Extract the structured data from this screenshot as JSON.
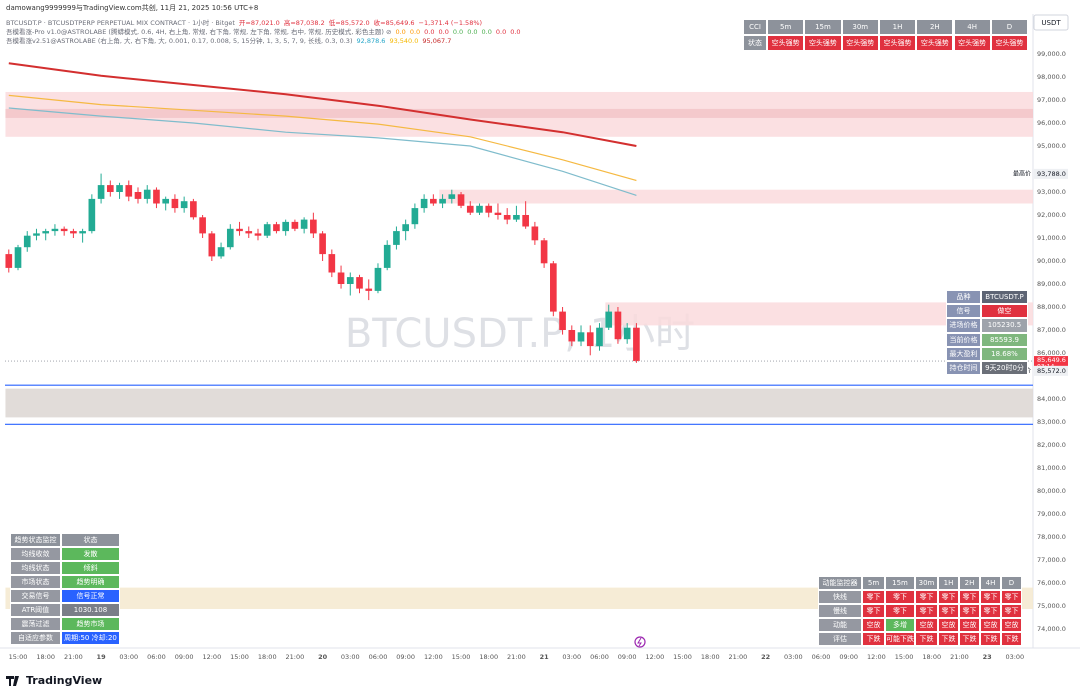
{
  "header": {
    "title": "damowang9999999与TradingView.com共创, 11月 21, 2025 10:56 UTC+8"
  },
  "legend": [
    {
      "parts": [
        {
          "text": "BTCUSDT.P · BTCUSDTPERP PERPETUAL MIX CONTRACT · 1小时 · Bitget",
          "color": "#6a6d78"
        },
        {
          "text": "开=87,021.0",
          "color": "#e0313f"
        },
        {
          "text": "高=87,038.2",
          "color": "#e0313f"
        },
        {
          "text": "低=85,572.0",
          "color": "#e0313f"
        },
        {
          "text": "收=85,649.6",
          "color": "#e0313f"
        },
        {
          "text": "−1,371.4 (−1.58%)",
          "color": "#e0313f"
        }
      ]
    },
    {
      "parts": [
        {
          "text": "吾模看涨-Pro v1.0@ASTROLABE (腾蟒模式, 0.6, 4H, 右上角, 常规, 右下角, 常规, 左下角, 常规, 右中, 常规, 历史模式, 彩色主题) ⊘",
          "color": "#6a6d78"
        },
        {
          "text": "0.0",
          "color": "#ff9800"
        },
        {
          "text": "0.0",
          "color": "#ff9800"
        },
        {
          "text": "0.0",
          "color": "#e0313f"
        },
        {
          "text": "0.0",
          "color": "#e0313f"
        },
        {
          "text": "0.0",
          "color": "#4caf50"
        },
        {
          "text": "0.0",
          "color": "#4caf50"
        },
        {
          "text": "0.0",
          "color": "#4caf50"
        },
        {
          "text": "0.0",
          "color": "#e0313f"
        },
        {
          "text": "0.0",
          "color": "#e0313f"
        }
      ]
    },
    {
      "parts": [
        {
          "text": "吾模看涨v2.51@ASTROLABE (右上角, 大, 右下角, 大, 0.001, 0.17, 0.008, 5, 15分钟, 1, 3, 5, 7, 9, 长线, 0.3, 0.3)",
          "color": "#6a6d78"
        },
        {
          "text": "92,878.6",
          "color": "#26a6c9"
        },
        {
          "text": "93,540.0",
          "color": "#f5b800"
        },
        {
          "text": "95,067.7",
          "color": "#c62828"
        }
      ]
    }
  ],
  "watermark": "BTCUSDT.P, 1小时",
  "currency": "USDT",
  "brand": "TradingView",
  "chart_data": {
    "type": "candlestick",
    "up_color": "#22ab94",
    "down_color": "#f23645",
    "open": [
      90300,
      89700,
      90600,
      91100,
      91200,
      91300,
      91400,
      91300,
      91200,
      91300,
      92700,
      93300,
      93000,
      93300,
      93000,
      92700,
      93100,
      92500,
      92700,
      92300,
      92600,
      91900,
      91200,
      90200,
      90600,
      91400,
      91300,
      91200,
      91100,
      91600,
      91300,
      91700,
      91400,
      91800,
      91200,
      90300,
      89500,
      89000,
      89300,
      88800,
      88700,
      89700,
      90700,
      91300,
      91600,
      92300,
      92700,
      92500,
      92700,
      92900,
      92400,
      92100,
      92400,
      92100,
      92000,
      91800,
      92000,
      91500,
      90900,
      89900,
      87800,
      87000,
      86500,
      86900,
      86300,
      87100,
      87800,
      86600,
      87100
    ],
    "high": [
      90500,
      90700,
      91300,
      91400,
      91400,
      91600,
      91500,
      91400,
      91400,
      92900,
      93800,
      93500,
      93400,
      93500,
      93200,
      93300,
      93200,
      92800,
      92900,
      92800,
      92700,
      92000,
      91300,
      90800,
      91600,
      91700,
      91500,
      91400,
      91700,
      91700,
      91800,
      91800,
      91900,
      92100,
      91300,
      90500,
      89800,
      89500,
      89400,
      89200,
      89900,
      90900,
      91500,
      91800,
      92500,
      92900,
      92900,
      92900,
      93100,
      93000,
      92600,
      92500,
      92500,
      92500,
      92300,
      92400,
      92600,
      91700,
      91000,
      90000,
      88000,
      87200,
      87200,
      87200,
      87300,
      88100,
      88000,
      87300,
      87300
    ],
    "low": [
      89500,
      89600,
      90400,
      90900,
      90900,
      91100,
      91100,
      91000,
      90800,
      91200,
      92500,
      92800,
      92700,
      92600,
      92500,
      92500,
      92300,
      92200,
      92100,
      92100,
      91800,
      91000,
      90000,
      90100,
      90500,
      91100,
      91000,
      90900,
      91000,
      91200,
      91100,
      91300,
      91200,
      91000,
      90000,
      89300,
      88800,
      88500,
      88600,
      88300,
      88600,
      89600,
      90500,
      90900,
      91400,
      92100,
      92400,
      92300,
      92500,
      92300,
      92000,
      92000,
      91900,
      91800,
      91600,
      91700,
      91400,
      90700,
      89700,
      87600,
      86800,
      86300,
      86300,
      85900,
      86100,
      87000,
      86400,
      86400,
      85572
    ],
    "close": [
      89700,
      90600,
      91100,
      91200,
      91300,
      91400,
      91300,
      91200,
      91300,
      92700,
      93300,
      93000,
      93300,
      92800,
      92700,
      93100,
      92500,
      92700,
      92300,
      92600,
      91900,
      91200,
      90200,
      90600,
      91400,
      91300,
      91200,
      91100,
      91600,
      91300,
      91700,
      91400,
      91800,
      91200,
      90300,
      89500,
      89000,
      89300,
      88800,
      88700,
      89700,
      90700,
      91300,
      91600,
      92300,
      92700,
      92500,
      92700,
      92900,
      92400,
      92100,
      92400,
      92100,
      92000,
      91800,
      92000,
      91500,
      90900,
      89900,
      87800,
      87000,
      86500,
      86900,
      86300,
      87100,
      87800,
      86600,
      87100,
      85650
    ],
    "lines": [
      {
        "color": "#d32f2f",
        "x": [
          0,
          10,
          20,
          30,
          40,
          50,
          60,
          68
        ],
        "values": [
          98600,
          98050,
          97650,
          97250,
          96750,
          96150,
          95600,
          95000
        ]
      },
      {
        "color": "#f5b942",
        "x": [
          0,
          10,
          20,
          30,
          40,
          50,
          60,
          68
        ],
        "values": [
          97200,
          96800,
          96550,
          96300,
          95950,
          95400,
          94400,
          93500
        ]
      },
      {
        "color": "#7fbccc",
        "x": [
          0,
          10,
          20,
          30,
          40,
          50,
          60,
          68
        ],
        "values": [
          96650,
          96300,
          96000,
          95600,
          95350,
          95000,
          93900,
          92850
        ]
      }
    ],
    "zones": [
      {
        "from": 97350,
        "to": 95400,
        "start": 0,
        "color": "#fadadd"
      },
      {
        "from": 96610,
        "to": 96220,
        "start": 0,
        "color": "#f2c4c8"
      },
      {
        "from": 93100,
        "to": 92500,
        "start": 47,
        "color": "#fadadd"
      },
      {
        "from": 88200,
        "to": 87200,
        "start": 65,
        "color": "#fadadd"
      },
      {
        "from": 84450,
        "to": 83200,
        "start": 0,
        "color": "#dcd6d2"
      },
      {
        "from": 75800,
        "to": 74870,
        "start": 0,
        "color": "#f4e9cf"
      }
    ],
    "hlines": [
      {
        "value": 84600,
        "color": "#2962ff"
      },
      {
        "value": 82900,
        "color": "#2962ff"
      }
    ],
    "ylim": [
      73174,
      100565
    ],
    "xlim": [
      -0.41,
      110.97
    ],
    "yticks": [
      {
        "value": 99000,
        "label": "99,000.0"
      },
      {
        "value": 98000,
        "label": "98,000.0"
      },
      {
        "value": 97000,
        "label": "97,000.0"
      },
      {
        "value": 96000,
        "label": "96,000.0"
      },
      {
        "value": 95000,
        "label": "95,000.0"
      },
      {
        "value": 93000,
        "label": "93,000.0"
      },
      {
        "value": 92000,
        "label": "92,000.0"
      },
      {
        "value": 91000,
        "label": "91,000.0"
      },
      {
        "value": 90000,
        "label": "90,000.0"
      },
      {
        "value": 89000,
        "label": "89,000.0"
      },
      {
        "value": 88000,
        "label": "88,000.0"
      },
      {
        "value": 87000,
        "label": "87,000.0"
      },
      {
        "value": 86000,
        "label": "86,000.0"
      },
      {
        "value": 84000,
        "label": "84,000.0"
      },
      {
        "value": 83000,
        "label": "83,000.0"
      },
      {
        "value": 82000,
        "label": "82,000.0"
      },
      {
        "value": 81000,
        "label": "81,000.0"
      },
      {
        "value": 80000,
        "label": "80,000.0"
      },
      {
        "value": 79000,
        "label": "79,000.0"
      },
      {
        "value": 78000,
        "label": "78,000.0"
      },
      {
        "value": 77000,
        "label": "77,000.0"
      },
      {
        "value": 76000,
        "label": "76,000.0"
      },
      {
        "value": 75000,
        "label": "75,000.0"
      },
      {
        "value": 74000,
        "label": "74,000.0"
      }
    ],
    "xticks": [
      {
        "value": 1,
        "label": "15:00"
      },
      {
        "value": 4,
        "label": "18:00"
      },
      {
        "value": 7,
        "label": "21:00"
      },
      {
        "value": 10,
        "label": "19"
      },
      {
        "value": 13,
        "label": "03:00"
      },
      {
        "value": 16,
        "label": "06:00"
      },
      {
        "value": 19,
        "label": "09:00"
      },
      {
        "value": 22,
        "label": "12:00"
      },
      {
        "value": 25,
        "label": "15:00"
      },
      {
        "value": 28,
        "label": "18:00"
      },
      {
        "value": 31,
        "label": "21:00"
      },
      {
        "value": 34,
        "label": "20"
      },
      {
        "value": 37,
        "label": "03:00"
      },
      {
        "value": 40,
        "label": "06:00"
      },
      {
        "value": 43,
        "label": "09:00"
      },
      {
        "value": 46,
        "label": "12:00"
      },
      {
        "value": 49,
        "label": "15:00"
      },
      {
        "value": 52,
        "label": "18:00"
      },
      {
        "value": 55,
        "label": "21:00"
      },
      {
        "value": 58,
        "label": "21"
      },
      {
        "value": 61,
        "label": "03:00"
      },
      {
        "value": 64,
        "label": "06:00"
      },
      {
        "value": 67,
        "label": "09:00"
      },
      {
        "value": 70,
        "label": "12:00"
      },
      {
        "value": 73,
        "label": "15:00"
      },
      {
        "value": 76,
        "label": "18:00"
      },
      {
        "value": 79,
        "label": "21:00"
      },
      {
        "value": 82,
        "label": "22"
      },
      {
        "value": 85,
        "label": "03:00"
      },
      {
        "value": 88,
        "label": "06:00"
      },
      {
        "value": 91,
        "label": "09:00"
      },
      {
        "value": 94,
        "label": "12:00"
      },
      {
        "value": 97,
        "label": "15:00"
      },
      {
        "value": 100,
        "label": "18:00"
      },
      {
        "value": 103,
        "label": "21:00"
      },
      {
        "value": 106,
        "label": "23"
      },
      {
        "value": 109,
        "label": "03:00"
      }
    ],
    "price_labels": [
      {
        "value": 93788,
        "label": "93,788.0",
        "name": "最高价",
        "style": "plain"
      },
      {
        "value": 85649.6,
        "label": "85,649.6",
        "countdown": "03:14",
        "style": "current"
      },
      {
        "value": 85572,
        "label": "85,572.0",
        "name": "最低价",
        "style": "plain"
      }
    ]
  },
  "tables": {
    "cci": {
      "rows": [
        [
          "CCI",
          "5m",
          "15m",
          "30m",
          "1H",
          "2H",
          "4H",
          "D"
        ],
        [
          "状态",
          "空头强势",
          "空头强势",
          "空头强势",
          "空头强势",
          "空头强势",
          "空头强势",
          "空头强势"
        ]
      ]
    },
    "signal": {
      "rows": [
        [
          "品种",
          "BTCUSDT.P"
        ],
        [
          "信号",
          "做空"
        ],
        [
          "进场价格",
          "105230.5"
        ],
        [
          "当前价格",
          "85593.9"
        ],
        [
          "最大盈利",
          "18.68%"
        ],
        [
          "持仓时间",
          "9天20时0分"
        ]
      ]
    },
    "trend": {
      "rows": [
        [
          "趋势状态监控",
          "状态"
        ],
        [
          "均线收敛",
          "发散"
        ],
        [
          "均线状态",
          "倾斜"
        ],
        [
          "市场状态",
          "趋势明确"
        ],
        [
          "交易信号",
          "信号正常"
        ],
        [
          "ATR阈值",
          "1030.108"
        ],
        [
          "震荡过滤",
          "趋势市场"
        ],
        [
          "自适应参数",
          "周期:50 冷却:20"
        ]
      ]
    },
    "momentum": {
      "rows": [
        [
          "动能监控器",
          "5m",
          "15m",
          "30m",
          "1H",
          "2H",
          "4H",
          "D"
        ],
        [
          "快线",
          "零下",
          "零下",
          "零下",
          "零下",
          "零下",
          "零下",
          "零下"
        ],
        [
          "慢线",
          "零下",
          "零下",
          "零下",
          "零下",
          "零下",
          "零下",
          "零下"
        ],
        [
          "动能",
          "空放",
          "多增",
          "空放",
          "空放",
          "空放",
          "空放",
          "空放"
        ],
        [
          "评估",
          "下跌",
          "可能下跌",
          "下跌",
          "下跌",
          "下跌",
          "下跌",
          "下跌"
        ]
      ]
    }
  }
}
